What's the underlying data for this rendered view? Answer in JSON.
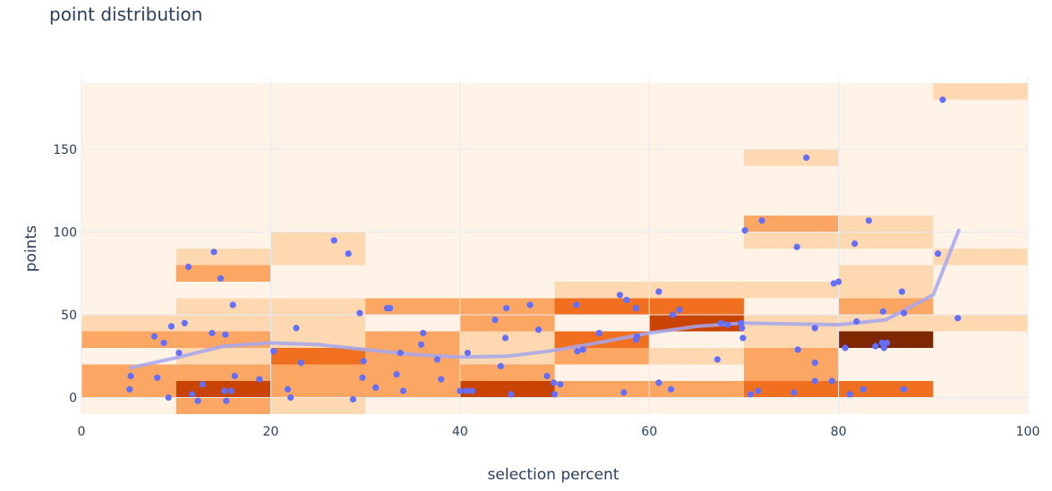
{
  "chart_data": {
    "type": "heatmap",
    "title": "point distribution",
    "xlabel": "selection percent",
    "ylabel": "points",
    "xlim": [
      0,
      100
    ],
    "ylim": [
      -10,
      190
    ],
    "x_ticks": [
      0,
      20,
      40,
      60,
      80,
      100
    ],
    "y_ticks": [
      0,
      50,
      100,
      150
    ],
    "grid": true,
    "colors": {
      "heat": [
        "#fff2e6",
        "#fdd8b0",
        "#fca663",
        "#f07020",
        "#c84400",
        "#7f2700"
      ],
      "points": "#636efa",
      "trend": "#a6a6ee",
      "grid": "#e6ebf2",
      "axis_text": "#2a3f5f"
    },
    "heatmap": {
      "x_bin_width": 10,
      "y_bin_height": 10,
      "background_level": 0,
      "cells": [
        {
          "x": 0,
          "y": 0,
          "level": 2
        },
        {
          "x": 0,
          "y": 10,
          "level": 2
        },
        {
          "x": 0,
          "y": 30,
          "level": 2
        },
        {
          "x": 0,
          "y": 40,
          "level": 1
        },
        {
          "x": 10,
          "y": -10,
          "level": 2
        },
        {
          "x": 10,
          "y": 0,
          "level": 4
        },
        {
          "x": 10,
          "y": 10,
          "level": 2
        },
        {
          "x": 10,
          "y": 20,
          "level": 1
        },
        {
          "x": 10,
          "y": 30,
          "level": 2
        },
        {
          "x": 10,
          "y": 40,
          "level": 1
        },
        {
          "x": 10,
          "y": 50,
          "level": 1
        },
        {
          "x": 10,
          "y": 70,
          "level": 2
        },
        {
          "x": 10,
          "y": 80,
          "level": 1
        },
        {
          "x": 20,
          "y": -10,
          "level": 1
        },
        {
          "x": 20,
          "y": 0,
          "level": 2
        },
        {
          "x": 20,
          "y": 10,
          "level": 2
        },
        {
          "x": 20,
          "y": 20,
          "level": 3
        },
        {
          "x": 20,
          "y": 30,
          "level": 1
        },
        {
          "x": 20,
          "y": 40,
          "level": 1
        },
        {
          "x": 20,
          "y": 50,
          "level": 1
        },
        {
          "x": 20,
          "y": 80,
          "level": 1
        },
        {
          "x": 20,
          "y": 90,
          "level": 1
        },
        {
          "x": 30,
          "y": 0,
          "level": 2
        },
        {
          "x": 30,
          "y": 10,
          "level": 2
        },
        {
          "x": 30,
          "y": 20,
          "level": 2
        },
        {
          "x": 30,
          "y": 30,
          "level": 2
        },
        {
          "x": 30,
          "y": 50,
          "level": 2
        },
        {
          "x": 40,
          "y": 0,
          "level": 4
        },
        {
          "x": 40,
          "y": 10,
          "level": 2
        },
        {
          "x": 40,
          "y": 20,
          "level": 1
        },
        {
          "x": 40,
          "y": 30,
          "level": 1
        },
        {
          "x": 40,
          "y": 40,
          "level": 2
        },
        {
          "x": 40,
          "y": 50,
          "level": 2
        },
        {
          "x": 50,
          "y": 0,
          "level": 2
        },
        {
          "x": 50,
          "y": 20,
          "level": 2
        },
        {
          "x": 50,
          "y": 30,
          "level": 3
        },
        {
          "x": 50,
          "y": 50,
          "level": 3
        },
        {
          "x": 50,
          "y": 60,
          "level": 1
        },
        {
          "x": 60,
          "y": 0,
          "level": 2
        },
        {
          "x": 60,
          "y": 20,
          "level": 1
        },
        {
          "x": 60,
          "y": 40,
          "level": 4
        },
        {
          "x": 60,
          "y": 50,
          "level": 3
        },
        {
          "x": 60,
          "y": 60,
          "level": 1
        },
        {
          "x": 70,
          "y": 0,
          "level": 3
        },
        {
          "x": 70,
          "y": 10,
          "level": 2
        },
        {
          "x": 70,
          "y": 20,
          "level": 2
        },
        {
          "x": 70,
          "y": 30,
          "level": 1
        },
        {
          "x": 70,
          "y": 40,
          "level": 1
        },
        {
          "x": 70,
          "y": 60,
          "level": 1
        },
        {
          "x": 70,
          "y": 90,
          "level": 1
        },
        {
          "x": 70,
          "y": 100,
          "level": 2
        },
        {
          "x": 70,
          "y": 140,
          "level": 1
        },
        {
          "x": 80,
          "y": 0,
          "level": 3
        },
        {
          "x": 80,
          "y": 30,
          "level": 5
        },
        {
          "x": 80,
          "y": 40,
          "level": 1
        },
        {
          "x": 80,
          "y": 50,
          "level": 2
        },
        {
          "x": 80,
          "y": 60,
          "level": 1
        },
        {
          "x": 80,
          "y": 70,
          "level": 1
        },
        {
          "x": 80,
          "y": 90,
          "level": 1
        },
        {
          "x": 80,
          "y": 100,
          "level": 1
        },
        {
          "x": 90,
          "y": 40,
          "level": 1
        },
        {
          "x": 90,
          "y": 80,
          "level": 1
        },
        {
          "x": 90,
          "y": 180,
          "level": 1
        }
      ]
    },
    "scatter": [
      [
        5.2,
        13
      ],
      [
        5.1,
        5
      ],
      [
        7.7,
        37
      ],
      [
        8,
        12
      ],
      [
        8.7,
        33
      ],
      [
        9.2,
        0
      ],
      [
        9.5,
        43
      ],
      [
        10.3,
        27
      ],
      [
        10.9,
        45
      ],
      [
        11.3,
        79
      ],
      [
        11.7,
        2
      ],
      [
        12.3,
        -2
      ],
      [
        12.8,
        8
      ],
      [
        13.8,
        39
      ],
      [
        14,
        88
      ],
      [
        14.7,
        72
      ],
      [
        15.1,
        4
      ],
      [
        15.2,
        38
      ],
      [
        15.3,
        -2
      ],
      [
        15.8,
        4
      ],
      [
        16,
        56
      ],
      [
        16.2,
        13
      ],
      [
        18.8,
        11
      ],
      [
        20.3,
        28
      ],
      [
        21.8,
        5
      ],
      [
        22.1,
        0
      ],
      [
        22.7,
        42
      ],
      [
        23.2,
        21
      ],
      [
        26.7,
        95
      ],
      [
        28.2,
        87
      ],
      [
        28.7,
        -1
      ],
      [
        29.4,
        51
      ],
      [
        29.7,
        12
      ],
      [
        29.8,
        22
      ],
      [
        31.1,
        6
      ],
      [
        32.3,
        54
      ],
      [
        32.6,
        54
      ],
      [
        33.3,
        14
      ],
      [
        33.7,
        27
      ],
      [
        34,
        4
      ],
      [
        35.9,
        32
      ],
      [
        36.1,
        39
      ],
      [
        37.6,
        23
      ],
      [
        38,
        11
      ],
      [
        40,
        4
      ],
      [
        40.8,
        27
      ],
      [
        40.7,
        4
      ],
      [
        41.3,
        4
      ],
      [
        43.7,
        47
      ],
      [
        44.3,
        19
      ],
      [
        44.8,
        36
      ],
      [
        44.9,
        54
      ],
      [
        45.4,
        2
      ],
      [
        47.4,
        56
      ],
      [
        48.3,
        41
      ],
      [
        49.2,
        13
      ],
      [
        49.9,
        9
      ],
      [
        50,
        2
      ],
      [
        50.6,
        8
      ],
      [
        52.3,
        56
      ],
      [
        52.4,
        28
      ],
      [
        53,
        29
      ],
      [
        54.7,
        39
      ],
      [
        56.9,
        62
      ],
      [
        57.3,
        3
      ],
      [
        57.6,
        59
      ],
      [
        58.6,
        35
      ],
      [
        58.6,
        54
      ],
      [
        58.7,
        37
      ],
      [
        61,
        64
      ],
      [
        61,
        9
      ],
      [
        62.3,
        5
      ],
      [
        62.5,
        50
      ],
      [
        63.2,
        53
      ],
      [
        67.2,
        23
      ],
      [
        67.6,
        45
      ],
      [
        68.3,
        44
      ],
      [
        69.7,
        45
      ],
      [
        69.8,
        42
      ],
      [
        69.9,
        36
      ],
      [
        70.1,
        101
      ],
      [
        70.7,
        2
      ],
      [
        71.5,
        4
      ],
      [
        71.9,
        107
      ],
      [
        75.3,
        3
      ],
      [
        75.6,
        91
      ],
      [
        75.7,
        29
      ],
      [
        76.6,
        145
      ],
      [
        77.5,
        42
      ],
      [
        77.5,
        21
      ],
      [
        77.5,
        10
      ],
      [
        79.3,
        10
      ],
      [
        79.5,
        69
      ],
      [
        80,
        70
      ],
      [
        80.7,
        30
      ],
      [
        81.2,
        2
      ],
      [
        81.7,
        93
      ],
      [
        81.9,
        46
      ],
      [
        82.6,
        5
      ],
      [
        83.2,
        107
      ],
      [
        83.9,
        31
      ],
      [
        84.6,
        33
      ],
      [
        84.7,
        52
      ],
      [
        84.8,
        30
      ],
      [
        85.1,
        33
      ],
      [
        86.7,
        64
      ],
      [
        86.9,
        5
      ],
      [
        86.9,
        51
      ],
      [
        90.5,
        87
      ],
      [
        91,
        180
      ],
      [
        92.6,
        48
      ]
    ],
    "trend": [
      [
        5.2,
        18
      ],
      [
        10,
        24
      ],
      [
        15,
        31
      ],
      [
        20,
        33
      ],
      [
        25,
        32
      ],
      [
        30,
        29
      ],
      [
        35,
        26
      ],
      [
        40,
        24.5
      ],
      [
        45,
        25
      ],
      [
        50,
        28.5
      ],
      [
        55,
        33.5
      ],
      [
        60,
        39
      ],
      [
        65,
        43
      ],
      [
        70,
        45
      ],
      [
        75,
        44.5
      ],
      [
        80,
        44
      ],
      [
        85,
        47
      ],
      [
        90,
        62
      ],
      [
        92.7,
        101
      ]
    ]
  }
}
